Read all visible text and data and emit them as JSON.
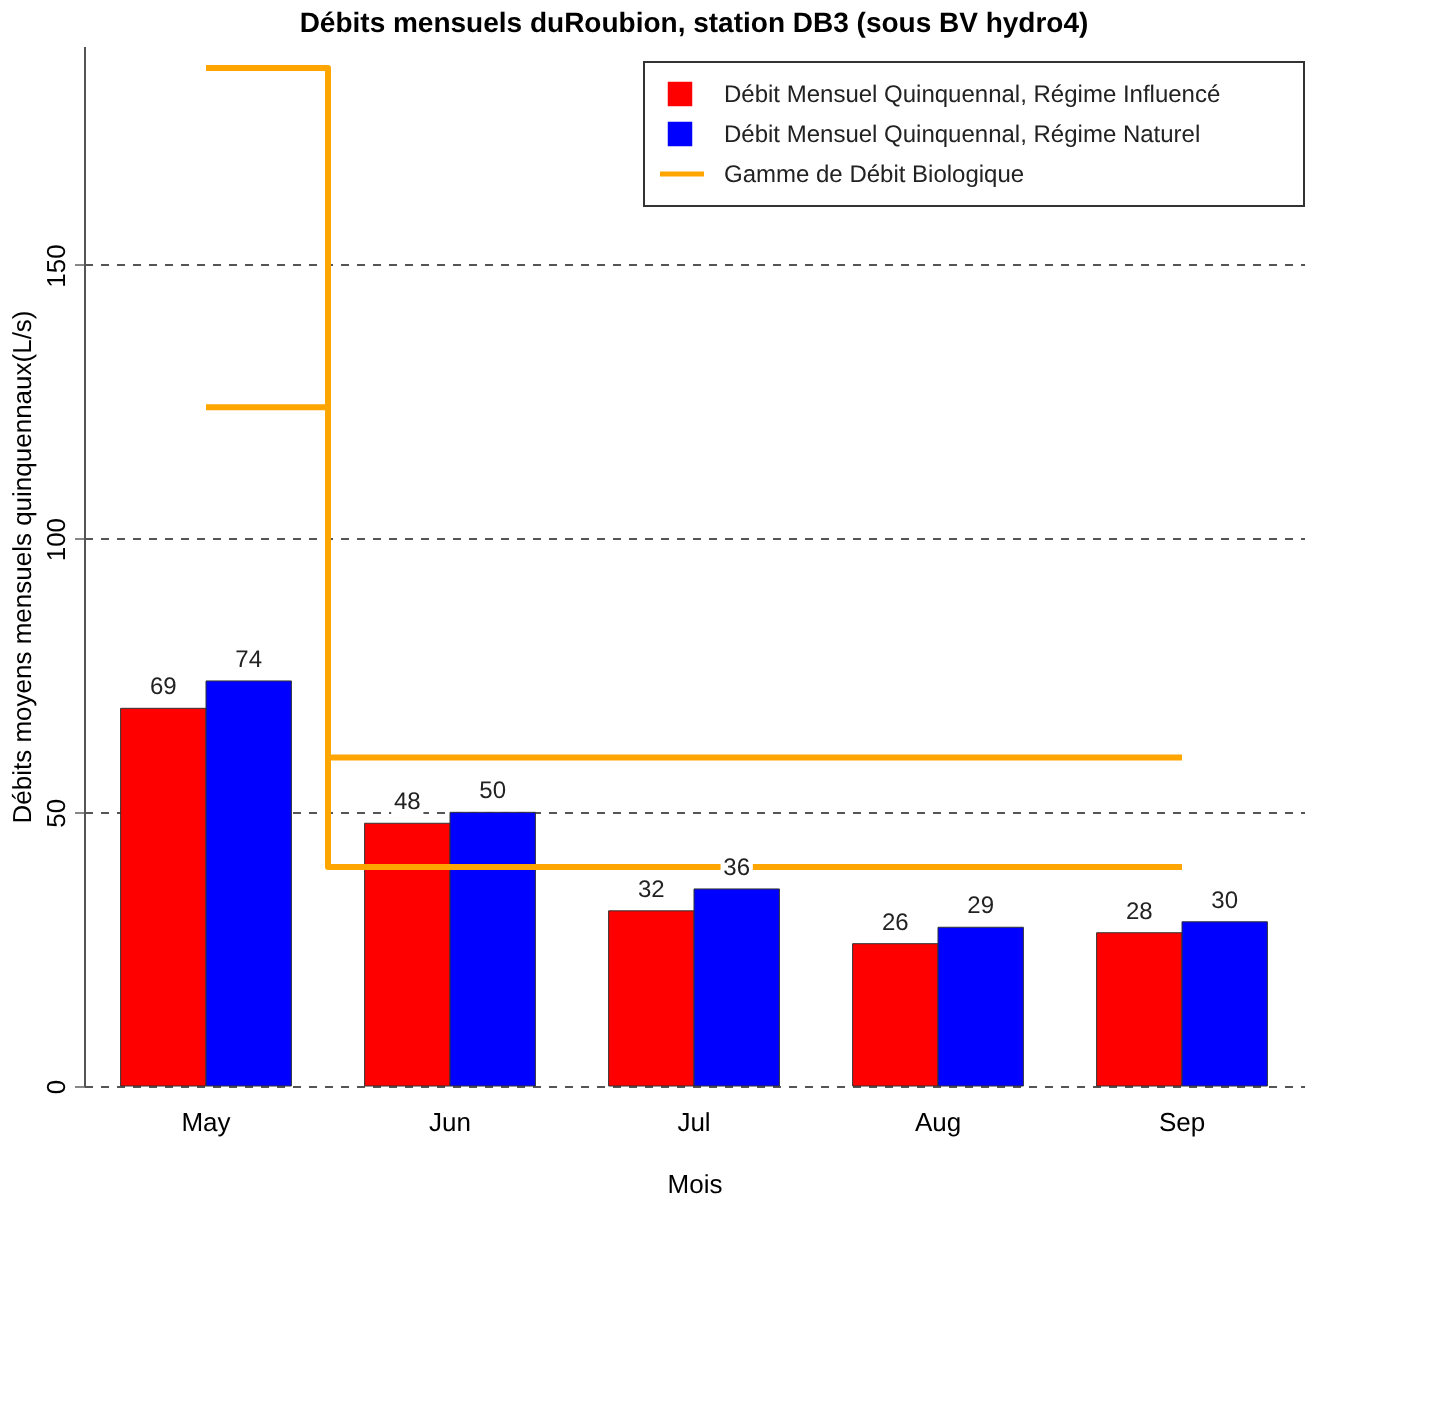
{
  "chart_data": {
    "type": "bar",
    "title": "Débits mensuels duRoubion, station DB3 (sous BV hydro4)",
    "xlabel": "Mois",
    "ylabel": "Débits moyens mensuels quinquennaux(L/s)",
    "categories": [
      "May",
      "Jun",
      "Jul",
      "Aug",
      "Sep"
    ],
    "series": [
      {
        "name": "Débit Mensuel Quinquennal, Régime Influencé",
        "color": "#ff0000",
        "values": [
          69,
          48,
          32,
          26,
          28
        ],
        "value_labels": [
          "69",
          "48",
          "32",
          "26",
          "28"
        ]
      },
      {
        "name": "Débit Mensuel Quinquennal, Régime Naturel",
        "color": "#0000ff",
        "values": [
          74,
          50,
          36,
          29,
          30
        ],
        "value_labels": [
          "74",
          "50",
          "36",
          "29",
          "30"
        ]
      },
      {
        "name": "Gamme de Débit Biologique",
        "type": "step",
        "color": "#ffa500",
        "values": [
          186,
          60,
          60,
          60,
          60
        ]
      },
      {
        "type": "step",
        "color": "#ffa500",
        "values": [
          124,
          40,
          40,
          40,
          40
        ]
      }
    ],
    "ylim": [
      0,
      190
    ],
    "yticks": [
      0,
      50,
      100,
      150
    ],
    "grid": "y",
    "legend": "top right"
  }
}
